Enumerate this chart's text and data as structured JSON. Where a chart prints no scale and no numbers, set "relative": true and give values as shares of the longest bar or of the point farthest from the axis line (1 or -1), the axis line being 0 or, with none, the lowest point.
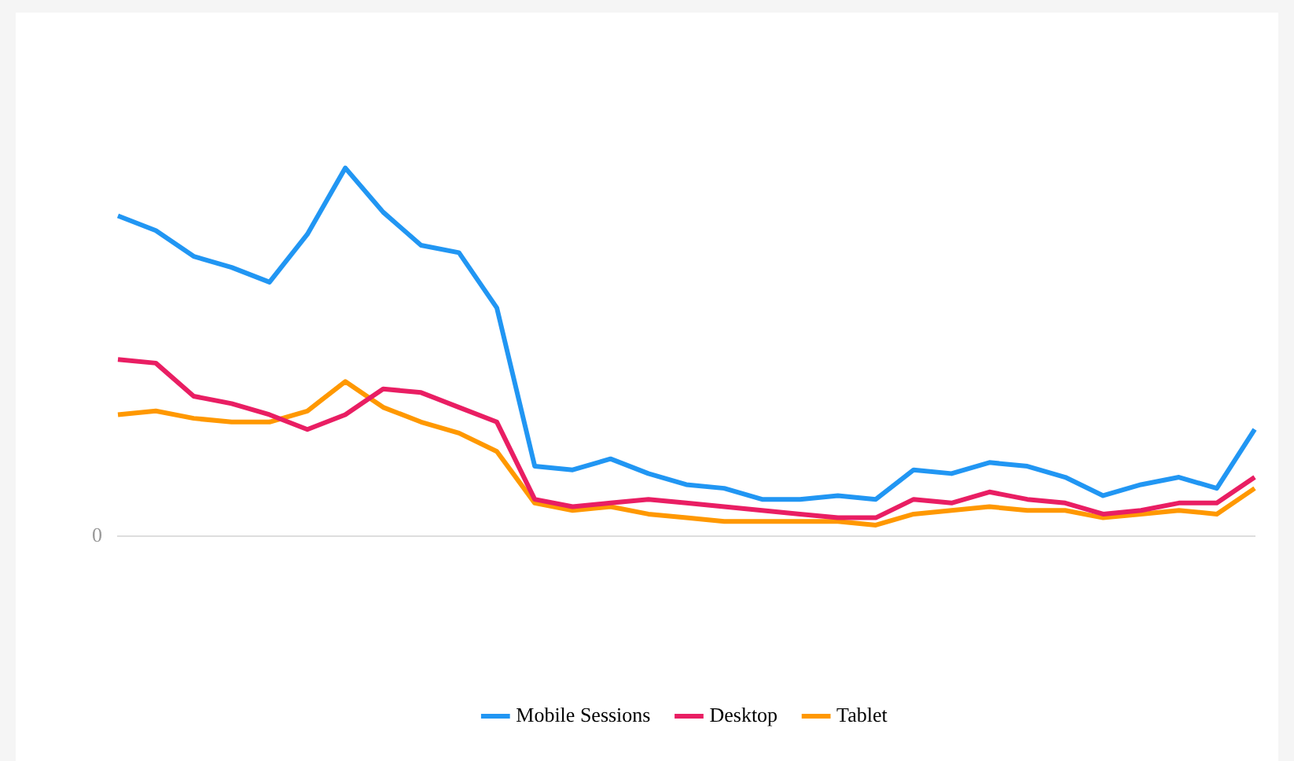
{
  "chart_data": {
    "type": "line",
    "relative": true,
    "categories": [
      null,
      null,
      null,
      null,
      null,
      null,
      null,
      null,
      null,
      null,
      null,
      null,
      null,
      null,
      null,
      null,
      null,
      null,
      null,
      null,
      null,
      null,
      null,
      null,
      null,
      null,
      null,
      null,
      null,
      null,
      null
    ],
    "series": [
      {
        "name": "Mobile Sessions",
        "color": "#2196f3",
        "values": [
          0.87,
          0.83,
          0.76,
          0.73,
          0.69,
          0.82,
          1,
          0.88,
          0.79,
          0.77,
          0.62,
          0.19,
          0.18,
          0.21,
          0.17,
          0.14,
          0.13,
          0.1,
          0.1,
          0.11,
          0.1,
          0.18,
          0.17,
          0.2,
          0.19,
          0.16,
          0.11,
          0.14,
          0.16,
          0.13,
          0.29
        ]
      },
      {
        "name": "Desktop",
        "color": "#e91e63",
        "values": [
          0.48,
          0.47,
          0.38,
          0.36,
          0.33,
          0.29,
          0.33,
          0.4,
          0.39,
          0.35,
          0.31,
          0.1,
          0.08,
          0.09,
          0.1,
          0.09,
          0.08,
          0.07,
          0.06,
          0.05,
          0.05,
          0.1,
          0.09,
          0.12,
          0.1,
          0.09,
          0.06,
          0.07,
          0.09,
          0.09,
          0.16
        ]
      },
      {
        "name": "Tablet",
        "color": "#ff9800",
        "values": [
          0.33,
          0.34,
          0.32,
          0.31,
          0.31,
          0.34,
          0.42,
          0.35,
          0.31,
          0.28,
          0.23,
          0.09,
          0.07,
          0.08,
          0.06,
          0.05,
          0.04,
          0.04,
          0.04,
          0.04,
          0.03,
          0.06,
          0.07,
          0.08,
          0.07,
          0.07,
          0.05,
          0.06,
          0.07,
          0.06,
          0.13
        ]
      }
    ],
    "annotations": [
      "0"
    ],
    "legend": "bottom",
    "grid": false,
    "marker": "none",
    "line_style": "solid"
  }
}
